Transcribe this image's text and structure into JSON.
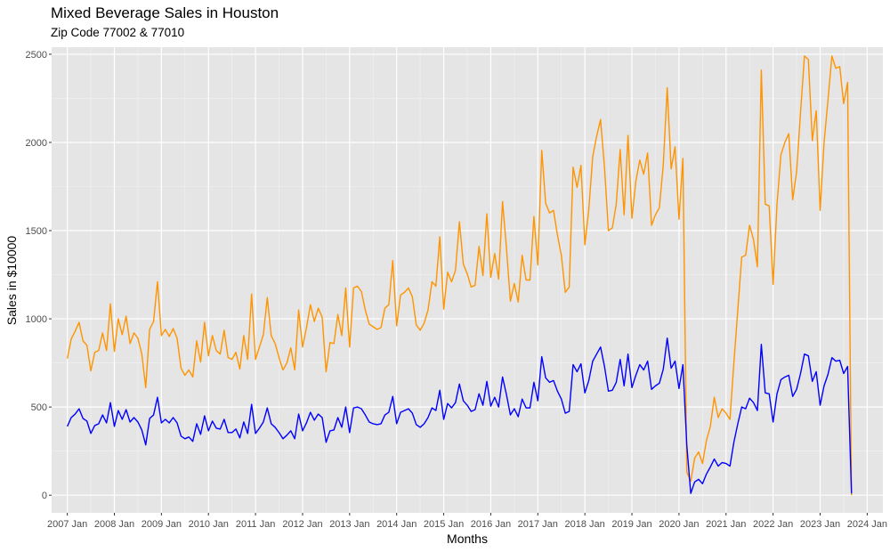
{
  "chart_data": {
    "type": "line",
    "title": "Mixed Beverage Sales in Houston",
    "subtitle": "Zip Code 77002 & 77010",
    "xlabel": "Months",
    "ylabel": "Sales in $10000",
    "ylim": [
      -100,
      2540
    ],
    "yticks": [
      0,
      500,
      1000,
      1500,
      2000,
      2500
    ],
    "x_start": "2007-01",
    "xlim": [
      "2006-09",
      "2024-05"
    ],
    "xticks": [
      "2007 Jan",
      "2008 Jan",
      "2009 Jan",
      "2010 Jan",
      "2011 Jan",
      "2012 Jan",
      "2013 Jan",
      "2014 Jan",
      "2015 Jan",
      "2016 Jan",
      "2017 Jan",
      "2018 Jan",
      "2019 Jan",
      "2020 Jan",
      "2021 Jan",
      "2022 Jan",
      "2023 Jan",
      "2024 Jan"
    ],
    "grid": true,
    "background": "#e5e5e5",
    "series": [
      {
        "name": "",
        "color": "#ff9400",
        "values": [
          775,
          885,
          930,
          980,
          875,
          850,
          705,
          810,
          820,
          920,
          820,
          1085,
          815,
          1000,
          910,
          1015,
          860,
          920,
          890,
          800,
          610,
          940,
          985,
          1210,
          905,
          940,
          900,
          945,
          890,
          720,
          680,
          710,
          670,
          875,
          755,
          980,
          790,
          905,
          820,
          800,
          935,
          780,
          770,
          810,
          715,
          905,
          770,
          1140,
          770,
          840,
          910,
          1120,
          905,
          860,
          780,
          710,
          750,
          835,
          710,
          1050,
          840,
          950,
          1080,
          985,
          1060,
          1010,
          700,
          865,
          860,
          1025,
          905,
          1175,
          840,
          1175,
          1185,
          1155,
          1050,
          970,
          955,
          940,
          950,
          1060,
          1080,
          1330,
          960,
          1135,
          1150,
          1175,
          1125,
          965,
          935,
          975,
          1050,
          1210,
          1185,
          1465,
          1055,
          1265,
          1210,
          1275,
          1550,
          1310,
          1255,
          1180,
          1190,
          1410,
          1245,
          1595,
          1235,
          1370,
          1225,
          1665,
          1400,
          1100,
          1200,
          1095,
          1360,
          1220,
          1220,
          1580,
          1305,
          1955,
          1655,
          1600,
          1615,
          1475,
          1360,
          1150,
          1180,
          1860,
          1745,
          1870,
          1420,
          1620,
          1920,
          2035,
          2130,
          1860,
          1500,
          1515,
          1650,
          1960,
          1590,
          2040,
          1570,
          1780,
          1900,
          1820,
          1940,
          1530,
          1590,
          1630,
          1875,
          2310,
          1850,
          1975,
          1565,
          1910,
          130,
          80,
          210,
          245,
          180,
          310,
          390,
          555,
          440,
          490,
          465,
          430,
          750,
          1050,
          1350,
          1360,
          1530,
          1450,
          1295,
          2410,
          1650,
          1640,
          1195,
          1650,
          1930,
          2000,
          2050,
          1675,
          1835,
          2170,
          2490,
          2470,
          2010,
          2180,
          1615,
          2000,
          2240,
          2490,
          2420,
          2430,
          2220,
          2340,
          0
        ]
      },
      {
        "name": "",
        "color": "#0000ff",
        "values": [
          390,
          440,
          460,
          490,
          435,
          420,
          350,
          395,
          405,
          455,
          410,
          525,
          390,
          480,
          430,
          485,
          415,
          440,
          415,
          370,
          285,
          435,
          455,
          555,
          410,
          430,
          410,
          440,
          410,
          335,
          320,
          330,
          305,
          405,
          345,
          450,
          365,
          420,
          380,
          375,
          430,
          355,
          355,
          375,
          325,
          415,
          350,
          515,
          350,
          380,
          415,
          495,
          405,
          385,
          355,
          320,
          340,
          365,
          320,
          460,
          365,
          410,
          470,
          425,
          460,
          440,
          300,
          365,
          370,
          440,
          385,
          500,
          355,
          495,
          500,
          490,
          455,
          415,
          405,
          400,
          405,
          455,
          470,
          560,
          405,
          470,
          480,
          490,
          465,
          400,
          385,
          405,
          440,
          495,
          480,
          595,
          430,
          520,
          495,
          525,
          630,
          535,
          510,
          475,
          485,
          575,
          510,
          645,
          505,
          555,
          500,
          670,
          570,
          455,
          490,
          445,
          545,
          495,
          495,
          640,
          535,
          785,
          665,
          640,
          650,
          590,
          545,
          465,
          475,
          740,
          700,
          745,
          580,
          650,
          760,
          800,
          840,
          730,
          590,
          595,
          640,
          770,
          620,
          800,
          610,
          680,
          740,
          710,
          760,
          600,
          620,
          635,
          715,
          890,
          720,
          760,
          605,
          740,
          280,
          10,
          75,
          90,
          65,
          120,
          160,
          205,
          165,
          185,
          180,
          165,
          300,
          405,
          500,
          490,
          550,
          525,
          480,
          855,
          580,
          575,
          415,
          575,
          655,
          670,
          680,
          560,
          600,
          690,
          800,
          790,
          645,
          700,
          510,
          620,
          685,
          780,
          760,
          765,
          690,
          730,
          10
        ]
      }
    ]
  }
}
